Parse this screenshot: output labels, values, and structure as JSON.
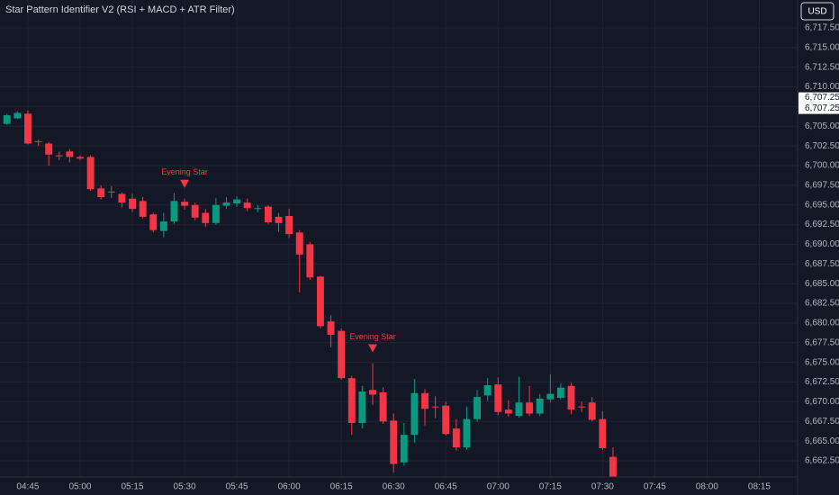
{
  "chart_data": {
    "type": "candlestick",
    "title": "Star Pattern Identifier V2 (RSI + MACD + ATR Filter)",
    "currency": "USD",
    "up_color": "#089981",
    "down_color": "#f23645",
    "grid": true,
    "xlim": [
      "04:37",
      "08:26"
    ],
    "xticks": [
      "04:45",
      "05:00",
      "05:15",
      "05:30",
      "05:45",
      "06:00",
      "06:15",
      "06:30",
      "06:45",
      "07:00",
      "07:15",
      "07:30",
      "07:45",
      "08:00",
      "08:15"
    ],
    "ylim": [
      6660.44,
      6721.04
    ],
    "yticks": [
      {
        "value": 6662.5,
        "label": "6,662.50"
      },
      {
        "value": 6665,
        "label": "6,665.00"
      },
      {
        "value": 6667.5,
        "label": "6,667.50"
      },
      {
        "value": 6670,
        "label": "6,670.00"
      },
      {
        "value": 6672.5,
        "label": "6,672.50"
      },
      {
        "value": 6675,
        "label": "6,675.00"
      },
      {
        "value": 6677.5,
        "label": "6,677.50"
      },
      {
        "value": 6680,
        "label": "6,680.00"
      },
      {
        "value": 6682.5,
        "label": "6,682.50"
      },
      {
        "value": 6685,
        "label": "6,685.00"
      },
      {
        "value": 6687.5,
        "label": "6,687.50"
      },
      {
        "value": 6690,
        "label": "6,690.00"
      },
      {
        "value": 6692.5,
        "label": "6,692.50"
      },
      {
        "value": 6695,
        "label": "6,695.00"
      },
      {
        "value": 6697.5,
        "label": "6,697.50"
      },
      {
        "value": 6700,
        "label": "6,700.00"
      },
      {
        "value": 6702.5,
        "label": "6,702.50"
      },
      {
        "value": 6705,
        "label": "6,705.00"
      },
      {
        "value": 6707.5,
        "label": "6,707.50"
      },
      {
        "value": 6710,
        "label": "6,710.00"
      },
      {
        "value": 6712.5,
        "label": "6,712.50"
      },
      {
        "value": 6715,
        "label": "6,715.00"
      },
      {
        "value": 6717.5,
        "label": "6,717.50"
      }
    ],
    "price_markers": [
      {
        "value": 6707.25,
        "label": "6,707.25"
      },
      {
        "value": 6707.25,
        "label": "6,707.25"
      }
    ],
    "x": [
      "04:39",
      "04:42",
      "04:45",
      "04:48",
      "04:51",
      "04:54",
      "04:57",
      "05:00",
      "05:03",
      "05:06",
      "05:09",
      "05:12",
      "05:15",
      "05:18",
      "05:21",
      "05:24",
      "05:27",
      "05:30",
      "05:33",
      "05:36",
      "05:39",
      "05:42",
      "05:45",
      "05:48",
      "05:51",
      "05:54",
      "05:57",
      "06:00",
      "06:03",
      "06:06",
      "06:09",
      "06:12",
      "06:15",
      "06:18",
      "06:21",
      "06:24",
      "06:27",
      "06:30",
      "06:33",
      "06:36",
      "06:39",
      "06:42",
      "06:45",
      "06:48",
      "06:51",
      "06:54",
      "06:57",
      "07:00",
      "07:03",
      "07:06",
      "07:09",
      "07:12",
      "07:15",
      "07:18",
      "07:21",
      "07:24",
      "07:27",
      "07:30",
      "07:33"
    ],
    "open": [
      6705.3,
      6706.0,
      6706.6,
      6703.1,
      6702.8,
      6701.3,
      6701.8,
      6701.1,
      6701.1,
      6697.1,
      6696.7,
      6696.4,
      6695.8,
      6695.5,
      6693.8,
      6691.7,
      6692.9,
      6695.4,
      6695.0,
      6694.0,
      6692.7,
      6694.9,
      6695.2,
      6695.3,
      6694.5,
      6694.8,
      6693.5,
      6693.6,
      6691.5,
      6690.0,
      6685.9,
      6680.2,
      6679.0,
      6673.0,
      6667.3,
      6671.5,
      6671.2,
      6667.6,
      6662.3,
      6665.8,
      6671.1,
      6669.4,
      6669.5,
      6666.6,
      6664.2,
      6667.8,
      6670.8,
      6672.2,
      6669.0,
      6668.2,
      6669.9,
      6668.5,
      6670.3,
      6670.5,
      6672.0,
      6669.4,
      6669.9,
      6667.8,
      6663.0
    ],
    "high": [
      6706.6,
      6706.9,
      6707.0,
      6703.3,
      6703.0,
      6701.8,
      6702.1,
      6701.3,
      6701.3,
      6697.5,
      6697.4,
      6696.6,
      6696.4,
      6696.0,
      6694.0,
      6694.0,
      6696.5,
      6695.8,
      6695.3,
      6694.5,
      6695.9,
      6696.0,
      6696.1,
      6695.8,
      6695.0,
      6695.0,
      6694.0,
      6694.5,
      6691.8,
      6690.3,
      6686.0,
      6681.0,
      6679.3,
      6673.3,
      6672.0,
      6674.9,
      6671.8,
      6668.5,
      6667.3,
      6672.9,
      6671.6,
      6670.7,
      6670.0,
      6667.8,
      6669.4,
      6671.5,
      6673.0,
      6673.1,
      6670.2,
      6673.2,
      6672.0,
      6671.0,
      6673.5,
      6672.3,
      6672.4,
      6670.0,
      6670.6,
      6668.8,
      6664.2
    ],
    "low": [
      6705.2,
      6705.9,
      6702.7,
      6702.5,
      6700.0,
      6700.7,
      6700.4,
      6700.7,
      6696.8,
      6695.7,
      6695.9,
      6694.7,
      6694.1,
      6693.3,
      6691.5,
      6690.9,
      6692.6,
      6694.4,
      6693.1,
      6692.2,
      6692.5,
      6694.5,
      6694.8,
      6694.2,
      6694.1,
      6692.6,
      6691.6,
      6690.8,
      6683.9,
      6685.5,
      6679.3,
      6676.9,
      6672.8,
      6665.8,
      6666.6,
      6669.6,
      6667.2,
      6661.0,
      6661.9,
      6664.8,
      6667.0,
      6667.9,
      6665.7,
      6663.8,
      6663.9,
      6667.5,
      6670.1,
      6668.3,
      6668.1,
      6668.0,
      6668.2,
      6668.2,
      6669.9,
      6670.3,
      6668.4,
      6668.7,
      6667.5,
      6663.9,
      6659.8
    ],
    "close": [
      6706.4,
      6706.7,
      6702.8,
      6703.0,
      6701.4,
      6701.2,
      6701.1,
      6700.9,
      6697.0,
      6696.0,
      6696.6,
      6695.3,
      6694.5,
      6693.5,
      6691.8,
      6692.9,
      6695.5,
      6694.9,
      6693.4,
      6692.7,
      6695.0,
      6695.3,
      6695.7,
      6694.6,
      6694.6,
      6692.8,
      6692.7,
      6691.3,
      6688.7,
      6685.8,
      6679.6,
      6678.5,
      6673.0,
      6667.3,
      6671.3,
      6670.9,
      6667.5,
      6662.1,
      6665.8,
      6671.1,
      6669.1,
      6669.3,
      6665.9,
      6664.2,
      6667.8,
      6670.6,
      6672.1,
      6668.7,
      6668.5,
      6669.9,
      6668.5,
      6670.4,
      6671.0,
      6671.8,
      6669.0,
      6669.3,
      6667.7,
      6664.1,
      6660.3
    ],
    "annotations": [
      {
        "x": "05:30",
        "text": "Evening Star"
      },
      {
        "x": "06:24",
        "text": "Evening Star"
      }
    ]
  }
}
